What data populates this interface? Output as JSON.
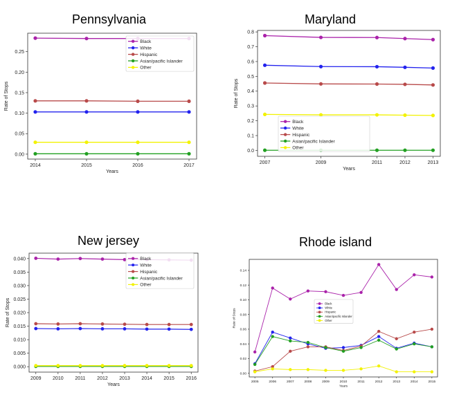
{
  "chart_data": [
    {
      "type": "line",
      "title": "Pennsylvania",
      "xlabel": "Years",
      "ylabel": "Rate of Stops",
      "x": [
        2014,
        2015,
        2016,
        2017
      ],
      "xticks": [
        "2014",
        "2015",
        "2016",
        "2017"
      ],
      "ylim": [
        -0.012,
        0.295
      ],
      "yticks": [
        0.0,
        0.05,
        0.1,
        0.15,
        0.2,
        0.25
      ],
      "yticklabels": [
        "0.00",
        "0.05",
        "0.10",
        "0.15",
        "0.20",
        "0.25"
      ],
      "legend_position": "top-right",
      "series": [
        {
          "name": "Black",
          "color": "#aa22aa",
          "values": [
            0.283,
            0.282,
            0.282,
            0.282
          ]
        },
        {
          "name": "White",
          "color": "#2222ee",
          "values": [
            0.103,
            0.103,
            0.103,
            0.103
          ]
        },
        {
          "name": "Hispanic",
          "color": "#b84a4a",
          "values": [
            0.13,
            0.13,
            0.129,
            0.129
          ]
        },
        {
          "name": "Asian/pacific Islander",
          "color": "#22a022",
          "values": [
            0.001,
            0.001,
            0.001,
            0.001
          ]
        },
        {
          "name": "Other",
          "color": "#f2f200",
          "values": [
            0.029,
            0.029,
            0.029,
            0.029
          ]
        }
      ]
    },
    {
      "type": "line",
      "title": "Maryland",
      "xlabel": "Years",
      "ylabel": "Rate of Stops",
      "x": [
        2007,
        2009,
        2011,
        2012,
        2013
      ],
      "xticks": [
        "2007",
        "2009",
        "2011",
        "2012",
        "2013"
      ],
      "ylim": [
        -0.04,
        0.81
      ],
      "yticks": [
        0.0,
        0.1,
        0.2,
        0.3,
        0.4,
        0.5,
        0.6,
        0.7,
        0.8
      ],
      "yticklabels": [
        "0.0",
        "0.1",
        "0.2",
        "0.3",
        "0.4",
        "0.5",
        "0.6",
        "0.7",
        "0.8"
      ],
      "legend_position": "bottom-center",
      "series": [
        {
          "name": "Black",
          "color": "#aa22aa",
          "values": [
            0.775,
            0.763,
            0.762,
            0.755,
            0.748
          ]
        },
        {
          "name": "White",
          "color": "#2222ee",
          "values": [
            0.575,
            0.566,
            0.565,
            0.561,
            0.556
          ]
        },
        {
          "name": "Hispanic",
          "color": "#b84a4a",
          "values": [
            0.455,
            0.449,
            0.448,
            0.446,
            0.442
          ]
        },
        {
          "name": "Asian/pacific Islander",
          "color": "#22a022",
          "values": [
            0.001,
            0.001,
            0.001,
            0.001,
            0.001
          ]
        },
        {
          "name": "Other",
          "color": "#f2f200",
          "values": [
            0.243,
            0.24,
            0.24,
            0.238,
            0.236
          ]
        }
      ]
    },
    {
      "type": "line",
      "title": "New jersey",
      "xlabel": "Years",
      "ylabel": "Rate of Stops",
      "x": [
        2009,
        2010,
        2011,
        2012,
        2013,
        2014,
        2015,
        2016
      ],
      "xticks": [
        "2009",
        "2010",
        "2011",
        "2012",
        "2013",
        "2014",
        "2015",
        "2016"
      ],
      "ylim": [
        -0.002,
        0.042
      ],
      "yticks": [
        0.0,
        0.005,
        0.01,
        0.015,
        0.02,
        0.025,
        0.03,
        0.035,
        0.04
      ],
      "yticklabels": [
        "0.000",
        "0.005",
        "0.010",
        "0.015",
        "0.020",
        "0.025",
        "0.030",
        "0.035",
        "0.040"
      ],
      "legend_position": "top-right",
      "series": [
        {
          "name": "Black",
          "color": "#aa22aa",
          "values": [
            0.0401,
            0.0398,
            0.04,
            0.0398,
            0.0396,
            0.0396,
            0.0395,
            0.0394
          ]
        },
        {
          "name": "White",
          "color": "#2222ee",
          "values": [
            0.0141,
            0.014,
            0.0141,
            0.014,
            0.014,
            0.0139,
            0.0139,
            0.0138
          ]
        },
        {
          "name": "Hispanic",
          "color": "#b84a4a",
          "values": [
            0.0159,
            0.0158,
            0.0159,
            0.0158,
            0.0157,
            0.0156,
            0.0156,
            0.0156
          ]
        },
        {
          "name": "Asian/pacific Islander",
          "color": "#22a022",
          "values": [
            0.0001,
            0.0001,
            0.0001,
            0.0001,
            0.0001,
            0.0001,
            0.0001,
            0.0001
          ]
        },
        {
          "name": "Other",
          "color": "#f2f200",
          "values": [
            0.0004,
            0.0004,
            0.0004,
            0.0004,
            0.0004,
            0.0004,
            0.0004,
            0.0004
          ]
        }
      ]
    },
    {
      "type": "line",
      "title": "Rhode island",
      "xlabel": "Years",
      "ylabel": "Rate of Stops",
      "x": [
        2005,
        2006,
        2007,
        2008,
        2009,
        2010,
        2011,
        2012,
        2013,
        2014,
        2015
      ],
      "xticks": [
        "2005",
        "2006",
        "2007",
        "2008",
        "2009",
        "2010",
        "2011",
        "2012",
        "2013",
        "2014",
        "2015"
      ],
      "ylim": [
        -0.005,
        0.155
      ],
      "yticks": [
        0.0,
        0.02,
        0.04,
        0.06,
        0.08,
        0.1,
        0.12,
        0.14
      ],
      "yticklabels": [
        "0.00",
        "0.02",
        "0.04",
        "0.06",
        "0.08",
        "0.10",
        "0.12",
        "0.14"
      ],
      "legend_position": "center-left",
      "series": [
        {
          "name": "Black",
          "color": "#aa22aa",
          "values": [
            0.029,
            0.116,
            0.101,
            0.112,
            0.111,
            0.106,
            0.11,
            0.148,
            0.114,
            0.134,
            0.131
          ]
        },
        {
          "name": "White",
          "color": "#2222ee",
          "values": [
            0.013,
            0.056,
            0.048,
            0.04,
            0.034,
            0.035,
            0.038,
            0.05,
            0.034,
            0.041,
            0.036
          ]
        },
        {
          "name": "Hispanic",
          "color": "#b84a4a",
          "values": [
            0.003,
            0.009,
            0.03,
            0.036,
            0.036,
            0.031,
            0.037,
            0.057,
            0.047,
            0.056,
            0.06
          ]
        },
        {
          "name": "Asian/pacific Islander",
          "color": "#22a022",
          "values": [
            0.012,
            0.05,
            0.044,
            0.042,
            0.035,
            0.03,
            0.035,
            0.045,
            0.033,
            0.04,
            0.036
          ]
        },
        {
          "name": "Other",
          "color": "#f2f200",
          "values": [
            0.002,
            0.006,
            0.005,
            0.005,
            0.004,
            0.004,
            0.006,
            0.01,
            0.002,
            0.002,
            0.002
          ]
        }
      ]
    }
  ]
}
